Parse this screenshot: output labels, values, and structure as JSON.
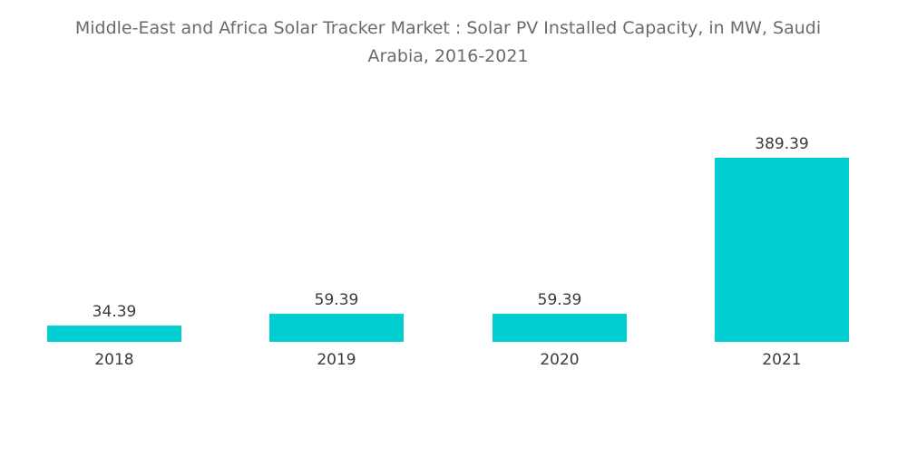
{
  "chart_data": {
    "type": "bar",
    "title_lines": [
      "Middle-East and Africa Solar Tracker Market : Solar PV Installed Capacity, in MW, Saudi",
      "Arabia, 2016-2021"
    ],
    "categories": [
      "2018",
      "2019",
      "2020",
      "2021"
    ],
    "values": [
      34.39,
      59.39,
      59.39,
      389.39
    ],
    "value_labels": [
      "34.39",
      "59.39",
      "59.39",
      "389.39"
    ],
    "xlabel": "",
    "ylabel": "",
    "ylim": [
      0,
      400
    ],
    "grid": false,
    "legend": "none",
    "bar_color": "#00ced1"
  }
}
